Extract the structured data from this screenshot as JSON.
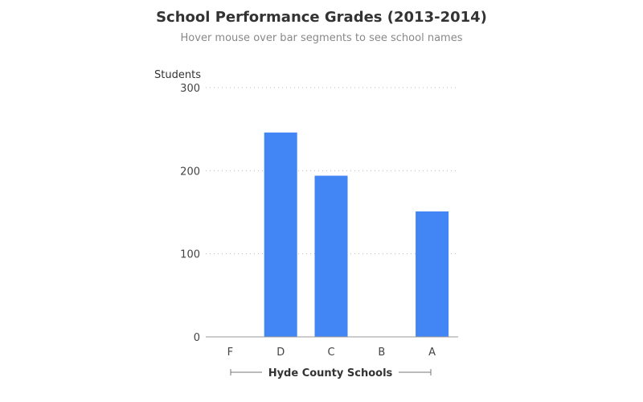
{
  "chart_data": {
    "type": "bar",
    "title": "School Performance Grades (2013-2014)",
    "subtitle": "Hover mouse over bar segments to see school names",
    "xlabel": "Hyde County Schools",
    "ylabel": "Students",
    "categories": [
      "F",
      "D",
      "C",
      "B",
      "A"
    ],
    "values": [
      0,
      246,
      194,
      0,
      151
    ],
    "ylim": [
      0,
      300
    ],
    "yticks": [
      0,
      100,
      200,
      300
    ],
    "grid": true,
    "legend": "none",
    "bar_color": "#4285f4"
  }
}
